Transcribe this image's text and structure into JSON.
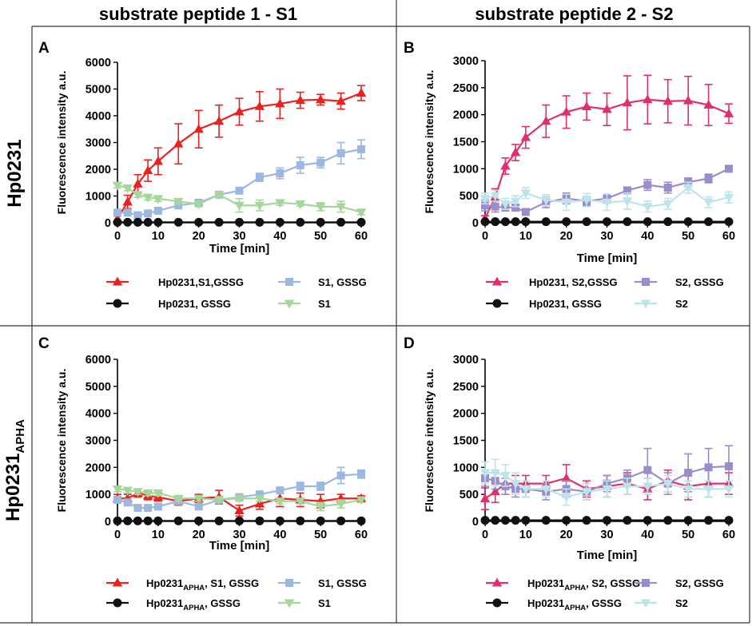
{
  "column_headers": [
    "substrate peptide 1 - S1",
    "substrate peptide 2 - S2"
  ],
  "row_labels": [
    {
      "main": "Hp0231",
      "sub": ""
    },
    {
      "main": "Hp0231",
      "sub": "APHA"
    }
  ],
  "colors": {
    "red": "#e8231f",
    "crimson": "#e0306a",
    "blue": "#9db8e0",
    "purple": "#9b8ccb",
    "green": "#a6d79a",
    "cyan": "#bde4ea",
    "black": "#111111"
  },
  "chart_data": [
    {
      "panel": "A",
      "type": "line",
      "title": "",
      "xlabel": "Time [min]",
      "ylabel": "Fluorescence intensity a.u.",
      "xlim": [
        0,
        60
      ],
      "ylim": [
        0,
        6000
      ],
      "xticks": [
        0,
        10,
        20,
        30,
        40,
        50,
        60
      ],
      "yticks": [
        0,
        1000,
        2000,
        3000,
        4000,
        5000,
        6000
      ],
      "series": [
        {
          "name": "Hp0231,S1,GSSG",
          "name_sub": "",
          "name_rest": "",
          "color": "#e8231f",
          "marker": "triangle-up",
          "x": [
            0,
            2.5,
            5,
            7.5,
            10,
            15,
            20,
            25,
            30,
            35,
            40,
            45,
            50,
            55,
            60
          ],
          "y": [
            150,
            780,
            1450,
            1950,
            2300,
            2950,
            3500,
            3800,
            4150,
            4350,
            4450,
            4580,
            4600,
            4550,
            4850
          ],
          "err": [
            100,
            250,
            350,
            400,
            500,
            750,
            700,
            600,
            500,
            550,
            550,
            300,
            200,
            300,
            280
          ]
        },
        {
          "name": "S1, GSSG",
          "name_sub": "",
          "name_rest": "",
          "color": "#9db8e0",
          "marker": "square",
          "x": [
            0,
            2.5,
            5,
            7.5,
            10,
            15,
            20,
            25,
            30,
            35,
            40,
            45,
            50,
            55,
            60
          ],
          "y": [
            380,
            380,
            280,
            350,
            450,
            650,
            750,
            1050,
            1200,
            1700,
            1850,
            2150,
            2250,
            2600,
            2750
          ],
          "err": [
            60,
            60,
            60,
            60,
            80,
            100,
            100,
            100,
            100,
            150,
            200,
            300,
            200,
            400,
            350
          ]
        },
        {
          "name": "Hp0231, GSSG",
          "name_sub": "",
          "name_rest": "",
          "color": "#111111",
          "marker": "circle",
          "x": [
            0,
            2.5,
            5,
            7.5,
            10,
            15,
            20,
            25,
            30,
            35,
            40,
            45,
            50,
            55,
            60
          ],
          "y": [
            20,
            20,
            20,
            20,
            20,
            20,
            20,
            20,
            20,
            20,
            20,
            20,
            20,
            20,
            20
          ],
          "err": [
            10,
            10,
            10,
            10,
            10,
            10,
            10,
            10,
            10,
            10,
            10,
            10,
            10,
            10,
            10
          ]
        },
        {
          "name": "S1",
          "name_sub": "",
          "name_rest": "",
          "color": "#a6d79a",
          "marker": "triangle-down",
          "x": [
            0,
            2.5,
            5,
            7.5,
            10,
            15,
            20,
            25,
            30,
            35,
            40,
            45,
            50,
            55,
            60
          ],
          "y": [
            1400,
            1300,
            1050,
            950,
            900,
            800,
            700,
            1050,
            650,
            650,
            750,
            700,
            600,
            600,
            400
          ],
          "err": [
            100,
            100,
            100,
            100,
            100,
            100,
            100,
            100,
            250,
            200,
            100,
            80,
            150,
            200,
            100
          ]
        }
      ],
      "legend": {
        "rows": [
          [
            "Hp0231,S1,GSSG",
            "S1, GSSG"
          ],
          [
            "Hp0231, GSSG",
            "S1"
          ]
        ]
      }
    },
    {
      "panel": "B",
      "type": "line",
      "title": "",
      "xlabel": "Time [min]",
      "ylabel": "Fluorescence intensity a.u.",
      "xlim": [
        0,
        60
      ],
      "ylim": [
        0,
        3000
      ],
      "xticks": [
        0,
        10,
        20,
        30,
        40,
        50,
        60
      ],
      "yticks": [
        0,
        500,
        1000,
        1500,
        2000,
        2500,
        3000
      ],
      "series": [
        {
          "name": "Hp0231, S2,GSSG",
          "name_sub": "",
          "name_rest": "",
          "color": "#e0306a",
          "marker": "triangle-up",
          "x": [
            0,
            2.5,
            5,
            7.5,
            10,
            15,
            20,
            25,
            30,
            35,
            40,
            45,
            50,
            55,
            60
          ],
          "y": [
            80,
            480,
            1050,
            1300,
            1580,
            1880,
            2050,
            2150,
            2100,
            2220,
            2280,
            2250,
            2260,
            2180,
            2020
          ],
          "err": [
            50,
            150,
            150,
            150,
            200,
            300,
            300,
            250,
            300,
            500,
            450,
            400,
            450,
            380,
            180
          ]
        },
        {
          "name": "S2, GSSG",
          "name_sub": "",
          "name_rest": "",
          "color": "#9b8ccb",
          "marker": "square",
          "x": [
            0,
            2.5,
            5,
            7.5,
            10,
            15,
            20,
            25,
            30,
            35,
            40,
            45,
            50,
            55,
            60
          ],
          "y": [
            320,
            300,
            280,
            280,
            200,
            380,
            450,
            400,
            450,
            600,
            700,
            650,
            750,
            820,
            1000
          ],
          "err": [
            100,
            100,
            60,
            60,
            60,
            100,
            100,
            80,
            80,
            60,
            100,
            100,
            80,
            80,
            60
          ]
        },
        {
          "name": "Hp0231, GSSG",
          "name_sub": "",
          "name_rest": "",
          "color": "#111111",
          "marker": "circle",
          "x": [
            0,
            2.5,
            5,
            7.5,
            10,
            15,
            20,
            25,
            30,
            35,
            40,
            45,
            50,
            55,
            60
          ],
          "y": [
            20,
            20,
            20,
            20,
            20,
            20,
            20,
            20,
            20,
            20,
            20,
            20,
            20,
            20,
            20
          ],
          "err": [
            10,
            10,
            10,
            10,
            10,
            10,
            10,
            10,
            10,
            10,
            10,
            10,
            10,
            10,
            10
          ]
        },
        {
          "name": "S2",
          "name_sub": "",
          "name_rest": "",
          "color": "#bde4ea",
          "marker": "triangle-down",
          "x": [
            0,
            2.5,
            5,
            7.5,
            10,
            15,
            20,
            25,
            30,
            35,
            40,
            45,
            50,
            55,
            60
          ],
          "y": [
            450,
            500,
            350,
            400,
            550,
            420,
            380,
            420,
            380,
            400,
            300,
            350,
            650,
            380,
            470
          ],
          "err": [
            100,
            100,
            100,
            100,
            100,
            100,
            150,
            120,
            150,
            150,
            100,
            100,
            100,
            100,
            100
          ]
        }
      ],
      "legend": {
        "rows": [
          [
            "Hp0231, S2,GSSG",
            "S2, GSSG"
          ],
          [
            "Hp0231, GSSG",
            "S2"
          ]
        ]
      }
    },
    {
      "panel": "C",
      "type": "line",
      "title": "",
      "xlabel": "Time [min]",
      "ylabel": "Fluorescence intensity a.u.",
      "xlim": [
        0,
        60
      ],
      "ylim": [
        0,
        6000
      ],
      "xticks": [
        0,
        10,
        20,
        30,
        40,
        50,
        60
      ],
      "yticks": [
        0,
        1000,
        2000,
        3000,
        4000,
        5000,
        6000
      ],
      "series": [
        {
          "name": "Hp0231",
          "name_sub": "APHA",
          "name_rest": ", S1, GSSG",
          "color": "#e8231f",
          "marker": "triangle-up",
          "x": [
            0,
            2.5,
            5,
            7.5,
            10,
            15,
            20,
            25,
            30,
            35,
            40,
            45,
            50,
            55,
            60
          ],
          "y": [
            850,
            850,
            1050,
            950,
            900,
            750,
            850,
            900,
            400,
            650,
            850,
            800,
            750,
            850,
            850
          ],
          "err": [
            150,
            150,
            150,
            150,
            150,
            150,
            150,
            250,
            200,
            200,
            300,
            250,
            250,
            150,
            100
          ]
        },
        {
          "name": "S1, GSSG",
          "name_sub": "",
          "name_rest": "",
          "color": "#9db8e0",
          "marker": "square",
          "x": [
            0,
            2.5,
            5,
            7.5,
            10,
            15,
            20,
            25,
            30,
            35,
            40,
            45,
            50,
            55,
            60
          ],
          "y": [
            800,
            700,
            500,
            500,
            550,
            750,
            550,
            800,
            900,
            1000,
            1150,
            1300,
            1300,
            1700,
            1750
          ],
          "err": [
            100,
            100,
            100,
            100,
            100,
            100,
            100,
            100,
            100,
            100,
            100,
            150,
            150,
            300,
            150
          ]
        },
        {
          "name": "Hp0231",
          "name_sub": "APHA",
          "name_rest": ", GSSG",
          "color": "#111111",
          "marker": "circle",
          "x": [
            0,
            2.5,
            5,
            7.5,
            10,
            15,
            20,
            25,
            30,
            35,
            40,
            45,
            50,
            55,
            60
          ],
          "y": [
            20,
            20,
            20,
            20,
            20,
            20,
            20,
            20,
            20,
            20,
            20,
            20,
            20,
            20,
            20
          ],
          "err": [
            10,
            10,
            10,
            10,
            10,
            10,
            10,
            10,
            10,
            10,
            10,
            10,
            10,
            10,
            10
          ]
        },
        {
          "name": "S1",
          "name_sub": "",
          "name_rest": "",
          "color": "#a6d79a",
          "marker": "triangle-down",
          "x": [
            0,
            2.5,
            5,
            7.5,
            10,
            15,
            20,
            25,
            30,
            35,
            40,
            45,
            50,
            55,
            60
          ],
          "y": [
            1200,
            1150,
            1100,
            1050,
            1050,
            850,
            850,
            800,
            850,
            850,
            750,
            750,
            550,
            650,
            800
          ],
          "err": [
            100,
            100,
            100,
            100,
            100,
            100,
            100,
            100,
            100,
            100,
            100,
            100,
            150,
            150,
            100
          ]
        }
      ],
      "legend": {
        "rows": [
          [
            "Hp0231",
            "S1, GSSG"
          ],
          [
            "Hp0231",
            "S1"
          ]
        ]
      }
    },
    {
      "panel": "D",
      "type": "line",
      "title": "",
      "xlabel": "Time [min]",
      "ylabel": "Fluorescence intensity a.u.",
      "xlim": [
        0,
        60
      ],
      "ylim": [
        0,
        3000
      ],
      "xticks": [
        0,
        10,
        20,
        30,
        40,
        50,
        60
      ],
      "yticks": [
        0,
        500,
        1000,
        1500,
        2000,
        2500,
        3000
      ],
      "series": [
        {
          "name": "Hp0231",
          "name_sub": "APHA",
          "name_rest": ", S2, GSSG",
          "color": "#e0306a",
          "marker": "triangle-up",
          "x": [
            0,
            2.5,
            5,
            7.5,
            10,
            15,
            20,
            25,
            30,
            35,
            40,
            45,
            50,
            55,
            60
          ],
          "y": [
            420,
            550,
            700,
            700,
            700,
            700,
            800,
            600,
            650,
            700,
            600,
            750,
            650,
            700,
            700
          ],
          "err": [
            200,
            200,
            200,
            150,
            150,
            150,
            250,
            150,
            200,
            200,
            200,
            200,
            250,
            250,
            200
          ]
        },
        {
          "name": "S2, GSSG",
          "name_sub": "",
          "name_rest": "",
          "color": "#9b8ccb",
          "marker": "square",
          "x": [
            0,
            2.5,
            5,
            7.5,
            10,
            15,
            20,
            25,
            30,
            35,
            40,
            45,
            50,
            55,
            60
          ],
          "y": [
            800,
            750,
            650,
            600,
            600,
            550,
            600,
            550,
            700,
            800,
            950,
            700,
            900,
            1000,
            1020
          ],
          "err": [
            150,
            150,
            150,
            150,
            150,
            150,
            150,
            150,
            150,
            150,
            400,
            200,
            350,
            350,
            380
          ]
        },
        {
          "name": "Hp0231",
          "name_sub": "APHA",
          "name_rest": ", GSSG",
          "color": "#111111",
          "marker": "circle",
          "x": [
            0,
            2.5,
            5,
            7.5,
            10,
            15,
            20,
            25,
            30,
            35,
            40,
            45,
            50,
            55,
            60
          ],
          "y": [
            20,
            20,
            20,
            20,
            20,
            20,
            20,
            20,
            20,
            20,
            20,
            20,
            20,
            20,
            20
          ],
          "err": [
            10,
            10,
            10,
            10,
            10,
            10,
            10,
            10,
            10,
            10,
            10,
            10,
            10,
            10,
            10
          ]
        },
        {
          "name": "S2",
          "name_sub": "",
          "name_rest": "",
          "color": "#bde4ea",
          "marker": "triangle-down",
          "x": [
            0,
            2.5,
            5,
            7.5,
            10,
            15,
            20,
            25,
            30,
            35,
            40,
            45,
            50,
            55,
            60
          ],
          "y": [
            900,
            900,
            850,
            700,
            600,
            600,
            450,
            550,
            600,
            650,
            650,
            700,
            600,
            600,
            600
          ],
          "err": [
            200,
            250,
            200,
            200,
            150,
            150,
            150,
            150,
            150,
            150,
            150,
            150,
            150,
            150,
            150
          ]
        }
      ],
      "legend": {
        "rows": [
          [
            "Hp0231",
            "S2, GSSG"
          ],
          [
            "Hp0231",
            "S2"
          ]
        ]
      }
    }
  ]
}
